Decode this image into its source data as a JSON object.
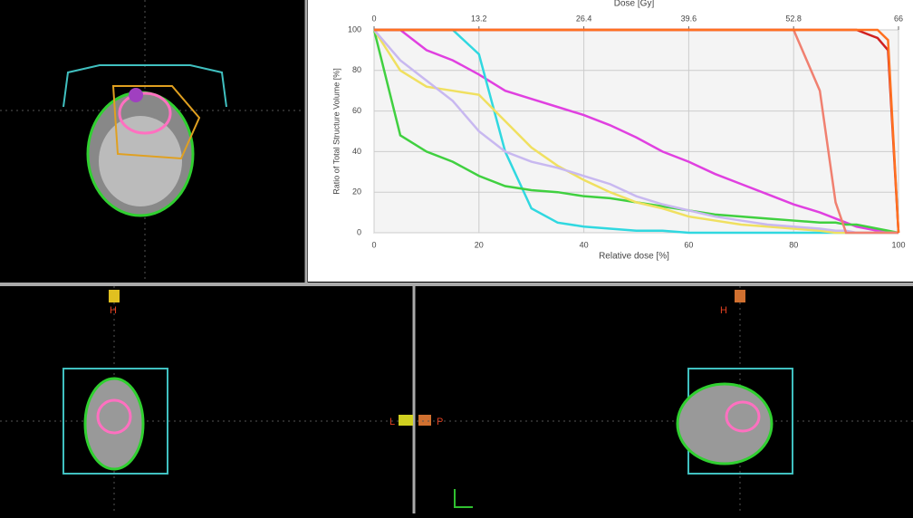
{
  "chart_data": {
    "type": "line",
    "title": "Dose [Gy]",
    "x_label": "Relative dose [%]",
    "y_label": "Ratio of Total Structure Volume [%]",
    "x": [
      0,
      5,
      10,
      15,
      20,
      25,
      30,
      35,
      40,
      45,
      50,
      55,
      60,
      65,
      70,
      75,
      80,
      85,
      88,
      90,
      92,
      94,
      96,
      98,
      100
    ],
    "xlim": [
      0,
      100
    ],
    "xticks": [
      0,
      20,
      40,
      60,
      80,
      100
    ],
    "x2lim": [
      0,
      66
    ],
    "x2ticks": [
      0,
      13.2,
      26.4,
      39.6,
      52.8,
      66
    ],
    "ylim": [
      0,
      100
    ],
    "yticks": [
      0,
      20,
      40,
      60,
      80,
      100
    ],
    "grid": true,
    "series": [
      {
        "color": "#e040e0",
        "values": [
          100,
          100,
          90,
          85,
          78,
          70,
          66,
          62,
          58,
          53,
          47,
          40,
          35,
          29,
          24,
          19,
          14,
          10,
          7,
          5,
          3,
          2,
          1,
          0,
          0
        ]
      },
      {
        "color": "#30d8e0",
        "values": [
          100,
          100,
          100,
          100,
          88,
          40,
          12,
          5,
          3,
          2,
          1,
          1,
          0,
          0,
          0,
          0,
          0,
          0,
          0,
          0,
          0,
          0,
          0,
          0,
          0
        ]
      },
      {
        "color": "#40d040",
        "values": [
          100,
          48,
          40,
          35,
          28,
          23,
          21,
          20,
          18,
          17,
          15,
          13,
          11,
          9,
          8,
          7,
          6,
          5,
          5,
          4,
          4,
          3,
          2,
          1,
          0
        ]
      },
      {
        "color": "#f0e060",
        "values": [
          100,
          80,
          72,
          70,
          68,
          55,
          42,
          33,
          26,
          20,
          15,
          12,
          8,
          6,
          4,
          3,
          2,
          1,
          0,
          0,
          0,
          0,
          0,
          0,
          0
        ]
      },
      {
        "color": "#c8b8f0",
        "values": [
          100,
          85,
          75,
          65,
          50,
          40,
          35,
          32,
          28,
          24,
          18,
          14,
          11,
          8,
          6,
          4,
          3,
          2,
          1,
          1,
          0,
          0,
          0,
          0,
          0
        ]
      },
      {
        "color": "#f08070",
        "values": [
          100,
          100,
          100,
          100,
          100,
          100,
          100,
          100,
          100,
          100,
          100,
          100,
          100,
          100,
          100,
          100,
          100,
          70,
          15,
          0,
          0,
          0,
          0,
          0,
          0
        ]
      },
      {
        "color": "#d02020",
        "values": [
          100,
          100,
          100,
          100,
          100,
          100,
          100,
          100,
          100,
          100,
          100,
          100,
          100,
          100,
          100,
          100,
          100,
          100,
          100,
          100,
          100,
          98,
          96,
          90,
          0
        ]
      },
      {
        "color": "#ff7020",
        "values": [
          100,
          100,
          100,
          100,
          100,
          100,
          100,
          100,
          100,
          100,
          100,
          100,
          100,
          100,
          100,
          100,
          100,
          100,
          100,
          100,
          100,
          100,
          100,
          95,
          0
        ]
      }
    ]
  },
  "viewer": {
    "coronal_labels": [
      "H",
      "L",
      "P"
    ],
    "sagittal_labels": [
      "H"
    ]
  }
}
